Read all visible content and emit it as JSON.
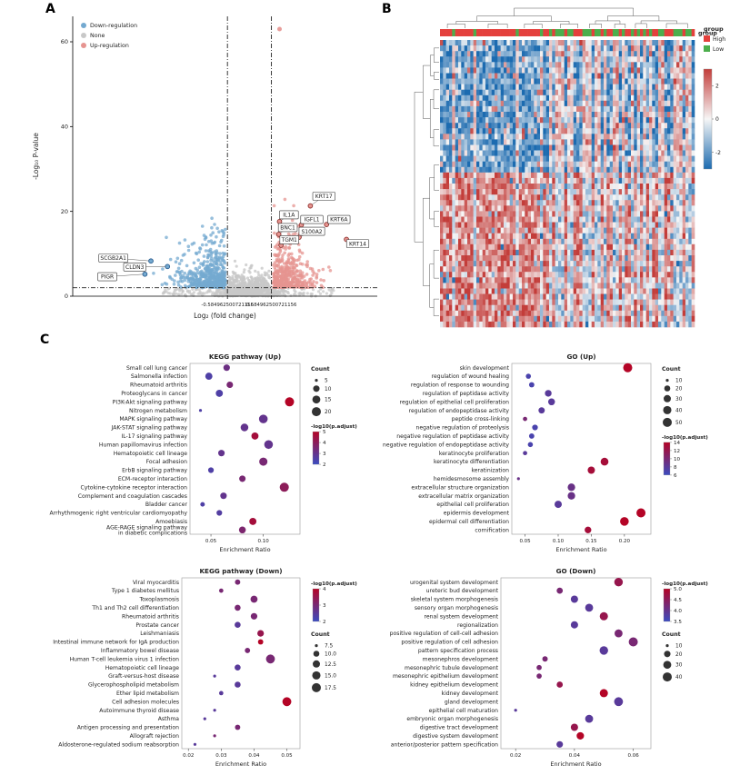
{
  "panels": {
    "a": "A",
    "b": "B",
    "c": "C"
  },
  "chart_data": [
    {
      "type": "scatter",
      "panel": "A",
      "xlabel": "Log₂ (fold change)",
      "ylabel": "-Log₁₀ P-value",
      "xlim": [
        -4.7,
        3.4
      ],
      "ylim": [
        0,
        66
      ],
      "yticks": [
        0,
        20,
        40,
        60
      ],
      "xticks": [
        -0.584962500721156,
        0.584962500721156
      ],
      "xtick_labels": [
        "-0.584962500721156",
        "0.584962500721156"
      ],
      "hline_y": 2,
      "legend": [
        {
          "label": "Down-regulation",
          "color": "#74a9d0"
        },
        {
          "label": "None",
          "color": "#c8c8c8"
        },
        {
          "label": "Up-regulation",
          "color": "#e69490"
        }
      ],
      "outlier_point": {
        "x": 0.8,
        "y": 63
      },
      "labeled_genes": [
        {
          "name": "KRT17",
          "x": 1.62,
          "y": 21.3,
          "lx": 1.98,
          "ly": 23.6
        },
        {
          "name": "IL1A",
          "x": 0.8,
          "y": 17.6,
          "lx": 1.05,
          "ly": 19.2
        },
        {
          "name": "IGFL1",
          "x": 1.38,
          "y": 16.8,
          "lx": 1.66,
          "ly": 18.1
        },
        {
          "name": "KRT6A",
          "x": 2.05,
          "y": 16.9,
          "lx": 2.38,
          "ly": 18.1
        },
        {
          "name": "BNC1",
          "x": 0.78,
          "y": 14.6,
          "lx": 1.02,
          "ly": 16.2
        },
        {
          "name": "S100A2",
          "x": 1.32,
          "y": 13.9,
          "lx": 1.66,
          "ly": 15.3
        },
        {
          "name": "TGM1",
          "x": 0.84,
          "y": 12.0,
          "lx": 1.06,
          "ly": 13.3
        },
        {
          "name": "KRT14",
          "x": 2.58,
          "y": 13.4,
          "lx": 2.88,
          "ly": 12.4
        },
        {
          "name": "SCGB2A1",
          "x": -2.62,
          "y": 8.3,
          "lx": -3.62,
          "ly": 9.0
        },
        {
          "name": "CLDN3",
          "x": -2.18,
          "y": 7.0,
          "lx": -3.05,
          "ly": 6.9
        },
        {
          "name": "PIGR",
          "x": -2.78,
          "y": 5.2,
          "lx": -3.78,
          "ly": 4.6
        }
      ],
      "clouds": {
        "down_n": 520,
        "none_n": 750,
        "none_tail_n": 160,
        "up_n": 430,
        "seed": 7
      },
      "colors": {
        "down": "#74a9d0",
        "none": "#c8c8c8",
        "up": "#e69490",
        "up_stroke": "#8b2f2b",
        "down_stroke": "#2a5d8f"
      }
    },
    {
      "type": "heatmap",
      "panel": "B",
      "rows": 52,
      "cols": 84,
      "value_range": [
        -3,
        3
      ],
      "colorscale": [
        "#1c6bb0",
        "#f6f6f6",
        "#c33d3a"
      ],
      "legend_ticks": [
        2,
        0,
        -2
      ],
      "group_row_label": "group",
      "group_legend": {
        "title": "group",
        "items": [
          {
            "label": "High",
            "color": "#e4403c"
          },
          {
            "label": "Low",
            "color": "#4cae4c"
          }
        ]
      },
      "pattern": {
        "left_frac": 0.42,
        "top_frac": 0.46,
        "seed": 11
      }
    },
    {
      "type": "dotplot",
      "title": "KEGG pathway (Up)",
      "xlabel": "Enrichment Ratio",
      "xlim": [
        0.03,
        0.135
      ],
      "xticks": [
        0.05,
        0.1
      ],
      "xtick_labels": [
        "0.05",
        "0.10"
      ],
      "count_legend": [
        5,
        10,
        15,
        20
      ],
      "count_legend_labels": [
        "5",
        "10",
        "15",
        "20"
      ],
      "count_legend_title": "Count",
      "color_legend_title": "-log10(p.adjust)",
      "color_legend_ticks": [
        "5",
        "4",
        "3",
        "2"
      ],
      "color_range": [
        2,
        5
      ],
      "color_low": "#3b4cc0",
      "color_high": "#b40426",
      "legend_order": [
        "count",
        "color"
      ],
      "items": [
        {
          "label": "Small cell lung cancer",
          "x": 0.065,
          "count": 10,
          "logp": 3.2
        },
        {
          "label": "Salmonella infection",
          "x": 0.048,
          "count": 12,
          "logp": 2.5
        },
        {
          "label": "Rheumatoid arthritis",
          "x": 0.068,
          "count": 10,
          "logp": 3.5
        },
        {
          "label": "Proteoglycans in cancer",
          "x": 0.058,
          "count": 12,
          "logp": 2.5
        },
        {
          "label": "PI3K-Akt signaling pathway",
          "x": 0.125,
          "count": 22,
          "logp": 5.0
        },
        {
          "label": "Nitrogen metabolism",
          "x": 0.04,
          "count": 5,
          "logp": 2.5
        },
        {
          "label": "MAPK signaling pathway",
          "x": 0.1,
          "count": 18,
          "logp": 3.0
        },
        {
          "label": "JAK-STAT signaling pathway",
          "x": 0.082,
          "count": 14,
          "logp": 3.0
        },
        {
          "label": "IL-17 signaling pathway",
          "x": 0.092,
          "count": 12,
          "logp": 4.6
        },
        {
          "label": "Human papillomavirus infection",
          "x": 0.105,
          "count": 18,
          "logp": 3.0
        },
        {
          "label": "Hematopoietic cell lineage",
          "x": 0.06,
          "count": 10,
          "logp": 3.0
        },
        {
          "label": "Focal adhesion",
          "x": 0.1,
          "count": 16,
          "logp": 3.5
        },
        {
          "label": "ErbB signaling pathway",
          "x": 0.05,
          "count": 8,
          "logp": 2.5
        },
        {
          "label": "ECM-receptor interaction",
          "x": 0.08,
          "count": 10,
          "logp": 3.5
        },
        {
          "label": "Cytokine-cytokine receptor interaction",
          "x": 0.12,
          "count": 20,
          "logp": 4.0
        },
        {
          "label": "Complement and coagulation cascades",
          "x": 0.062,
          "count": 10,
          "logp": 3.0
        },
        {
          "label": "Bladder cancer",
          "x": 0.042,
          "count": 6,
          "logp": 2.5
        },
        {
          "label": "Arrhythmogenic right ventricular cardiomyopathy",
          "x": 0.058,
          "count": 8,
          "logp": 2.6
        },
        {
          "label": "Amoebiasis",
          "x": 0.09,
          "count": 12,
          "logp": 4.6
        },
        {
          "label": "AGE-RAGE signaling pathway\nin diabetic complications",
          "x": 0.08,
          "count": 11,
          "logp": 3.6
        }
      ]
    },
    {
      "type": "dotplot",
      "title": "GO (Up)",
      "xlabel": "Enrichment Ratio",
      "xlim": [
        0.03,
        0.24
      ],
      "xticks": [
        0.05,
        0.1,
        0.15,
        0.2
      ],
      "xtick_labels": [
        "0.05",
        "0.10",
        "0.15",
        "0.20"
      ],
      "count_legend": [
        10,
        20,
        30,
        40,
        50
      ],
      "count_legend_labels": [
        "10",
        "20",
        "30",
        "40",
        "50"
      ],
      "count_legend_title": "Count",
      "color_legend_title": "-log10(p.adjust)",
      "color_legend_ticks": [
        "14",
        "12",
        "10",
        "8",
        "6"
      ],
      "color_range": [
        6,
        14
      ],
      "color_low": "#3b4cc0",
      "color_high": "#b40426",
      "legend_order": [
        "count",
        "color"
      ],
      "items": [
        {
          "label": "skin development",
          "x": 0.205,
          "count": 50,
          "logp": 14
        },
        {
          "label": "regulation of wound healing",
          "x": 0.055,
          "count": 15,
          "logp": 7
        },
        {
          "label": "regulation of response to wounding",
          "x": 0.06,
          "count": 16,
          "logp": 7
        },
        {
          "label": "regulation of peptidase activity",
          "x": 0.085,
          "count": 25,
          "logp": 8
        },
        {
          "label": "regulation of epithelial cell proliferation",
          "x": 0.09,
          "count": 26,
          "logp": 8
        },
        {
          "label": "regulation of endopeptidase activity",
          "x": 0.075,
          "count": 22,
          "logp": 8
        },
        {
          "label": "peptide cross-linking",
          "x": 0.05,
          "count": 12,
          "logp": 10
        },
        {
          "label": "negative regulation of proteolysis",
          "x": 0.065,
          "count": 18,
          "logp": 7
        },
        {
          "label": "negative regulation of peptidase activity",
          "x": 0.06,
          "count": 16,
          "logp": 7
        },
        {
          "label": "negative regulation of endopeptidase activity",
          "x": 0.058,
          "count": 15,
          "logp": 7
        },
        {
          "label": "keratinocyte proliferation",
          "x": 0.05,
          "count": 12,
          "logp": 8
        },
        {
          "label": "keratinocyte differentiation",
          "x": 0.17,
          "count": 35,
          "logp": 13
        },
        {
          "label": "keratinization",
          "x": 0.15,
          "count": 30,
          "logp": 13
        },
        {
          "label": "hemidesmosome assembly",
          "x": 0.04,
          "count": 8,
          "logp": 9
        },
        {
          "label": "extracellular structure organization",
          "x": 0.12,
          "count": 32,
          "logp": 9
        },
        {
          "label": "extracellular matrix organization",
          "x": 0.12,
          "count": 32,
          "logp": 9
        },
        {
          "label": "epithelial cell proliferation",
          "x": 0.1,
          "count": 30,
          "logp": 8
        },
        {
          "label": "epidermis development",
          "x": 0.225,
          "count": 50,
          "logp": 14
        },
        {
          "label": "epidermal cell differentiation",
          "x": 0.2,
          "count": 45,
          "logp": 14
        },
        {
          "label": "cornification",
          "x": 0.145,
          "count": 25,
          "logp": 13
        }
      ]
    },
    {
      "type": "dotplot",
      "title": "KEGG pathway (Down)",
      "xlabel": "Enrichment Ratio",
      "xlim": [
        0.018,
        0.054
      ],
      "xticks": [
        0.02,
        0.03,
        0.04,
        0.05
      ],
      "xtick_labels": [
        "0.02",
        "0.03",
        "0.04",
        "0.05"
      ],
      "count_legend": [
        7.5,
        10,
        12.5,
        15,
        17.5
      ],
      "count_legend_labels": [
        "7.5",
        "10.0",
        "12.5",
        "15.0",
        "17.5"
      ],
      "count_legend_title": "Count",
      "color_legend_title": "-log10(p.adjust)",
      "color_legend_ticks": [
        "4",
        "3",
        "2"
      ],
      "color_range": [
        2,
        4
      ],
      "color_low": "#3b4cc0",
      "color_high": "#b40426",
      "legend_order": [
        "color",
        "count"
      ],
      "items": [
        {
          "label": "Viral myocarditis",
          "x": 0.035,
          "count": 9,
          "logp": 3.0
        },
        {
          "label": "Type 1 diabetes mellitus",
          "x": 0.03,
          "count": 8,
          "logp": 3.0
        },
        {
          "label": "Toxoplasmosis",
          "x": 0.04,
          "count": 12,
          "logp": 3.0
        },
        {
          "label": "Th1 and Th2 cell differentiation",
          "x": 0.035,
          "count": 10,
          "logp": 3.0
        },
        {
          "label": "Rheumatoid arthritis",
          "x": 0.04,
          "count": 11,
          "logp": 3.0
        },
        {
          "label": "Prostate cancer",
          "x": 0.035,
          "count": 10,
          "logp": 2.5
        },
        {
          "label": "Leishmaniasis",
          "x": 0.042,
          "count": 11,
          "logp": 3.5
        },
        {
          "label": "Intestinal immune network for IgA production",
          "x": 0.042,
          "count": 9,
          "logp": 4.0
        },
        {
          "label": "Inflammatory bowel disease",
          "x": 0.038,
          "count": 9,
          "logp": 3.0
        },
        {
          "label": "Human T-cell leukemia virus 1 infection",
          "x": 0.045,
          "count": 17,
          "logp": 3.0
        },
        {
          "label": "Hematopoietic cell lineage",
          "x": 0.035,
          "count": 10,
          "logp": 2.5
        },
        {
          "label": "Graft-versus-host disease",
          "x": 0.028,
          "count": 7,
          "logp": 2.5
        },
        {
          "label": "Glycerophospholipid metabolism",
          "x": 0.035,
          "count": 10,
          "logp": 2.5
        },
        {
          "label": "Ether lipid metabolism",
          "x": 0.03,
          "count": 8,
          "logp": 2.5
        },
        {
          "label": "Cell adhesion molecules",
          "x": 0.05,
          "count": 17,
          "logp": 4.0
        },
        {
          "label": "Autoimmune thyroid disease",
          "x": 0.028,
          "count": 7,
          "logp": 2.5
        },
        {
          "label": "Asthma",
          "x": 0.025,
          "count": 6,
          "logp": 2.5
        },
        {
          "label": "Antigen processing and presentation",
          "x": 0.035,
          "count": 9,
          "logp": 3.0
        },
        {
          "label": "Allograft rejection",
          "x": 0.028,
          "count": 7,
          "logp": 3.0
        },
        {
          "label": "Aldosterone-regulated sodium reabsorption",
          "x": 0.022,
          "count": 6,
          "logp": 2.5
        }
      ]
    },
    {
      "type": "dotplot",
      "title": "GO (Down)",
      "xlabel": "Enrichment Ratio",
      "xlim": [
        0.015,
        0.066
      ],
      "xticks": [
        0.02,
        0.04,
        0.06
      ],
      "xtick_labels": [
        "0.02",
        "0.04",
        "0.06"
      ],
      "count_legend": [
        10,
        20,
        30,
        40
      ],
      "count_legend_labels": [
        "10",
        "20",
        "30",
        "40"
      ],
      "count_legend_title": "Count",
      "color_legend_title": "-log10(p.adjust)",
      "color_legend_ticks": [
        "5.0",
        "4.5",
        "4.0",
        "3.5"
      ],
      "color_range": [
        3.5,
        5.5
      ],
      "color_low": "#3b4cc0",
      "color_high": "#b40426",
      "legend_order": [
        "color",
        "count"
      ],
      "items": [
        {
          "label": "urogenital system development",
          "x": 0.055,
          "count": 35,
          "logp": 5.0
        },
        {
          "label": "ureteric bud development",
          "x": 0.035,
          "count": 18,
          "logp": 4.5
        },
        {
          "label": "skeletal system morphogenesis",
          "x": 0.04,
          "count": 25,
          "logp": 4.0
        },
        {
          "label": "sensory organ morphogenesis",
          "x": 0.045,
          "count": 30,
          "logp": 4.0
        },
        {
          "label": "renal system development",
          "x": 0.05,
          "count": 32,
          "logp": 5.0
        },
        {
          "label": "regionalization",
          "x": 0.04,
          "count": 25,
          "logp": 4.0
        },
        {
          "label": "positive regulation of cell-cell adhesion",
          "x": 0.055,
          "count": 30,
          "logp": 4.5
        },
        {
          "label": "positive regulation of cell adhesion",
          "x": 0.06,
          "count": 40,
          "logp": 4.5
        },
        {
          "label": "pattern specification process",
          "x": 0.05,
          "count": 35,
          "logp": 4.0
        },
        {
          "label": "mesonephros development",
          "x": 0.03,
          "count": 15,
          "logp": 4.5
        },
        {
          "label": "mesonephric tubule development",
          "x": 0.028,
          "count": 14,
          "logp": 4.5
        },
        {
          "label": "mesonephric epithelium development",
          "x": 0.028,
          "count": 14,
          "logp": 4.5
        },
        {
          "label": "kidney epithelium development",
          "x": 0.035,
          "count": 18,
          "logp": 5.0
        },
        {
          "label": "kidney development",
          "x": 0.05,
          "count": 32,
          "logp": 5.5
        },
        {
          "label": "gland development",
          "x": 0.055,
          "count": 38,
          "logp": 4.0
        },
        {
          "label": "epithelial cell maturation",
          "x": 0.02,
          "count": 10,
          "logp": 4.0
        },
        {
          "label": "embryonic organ morphogenesis",
          "x": 0.045,
          "count": 30,
          "logp": 4.0
        },
        {
          "label": "digestive tract development",
          "x": 0.04,
          "count": 25,
          "logp": 5.0
        },
        {
          "label": "digestive system development",
          "x": 0.042,
          "count": 26,
          "logp": 5.5
        },
        {
          "label": "anterior/posterior pattern specification",
          "x": 0.035,
          "count": 20,
          "logp": 4.0
        }
      ]
    }
  ]
}
